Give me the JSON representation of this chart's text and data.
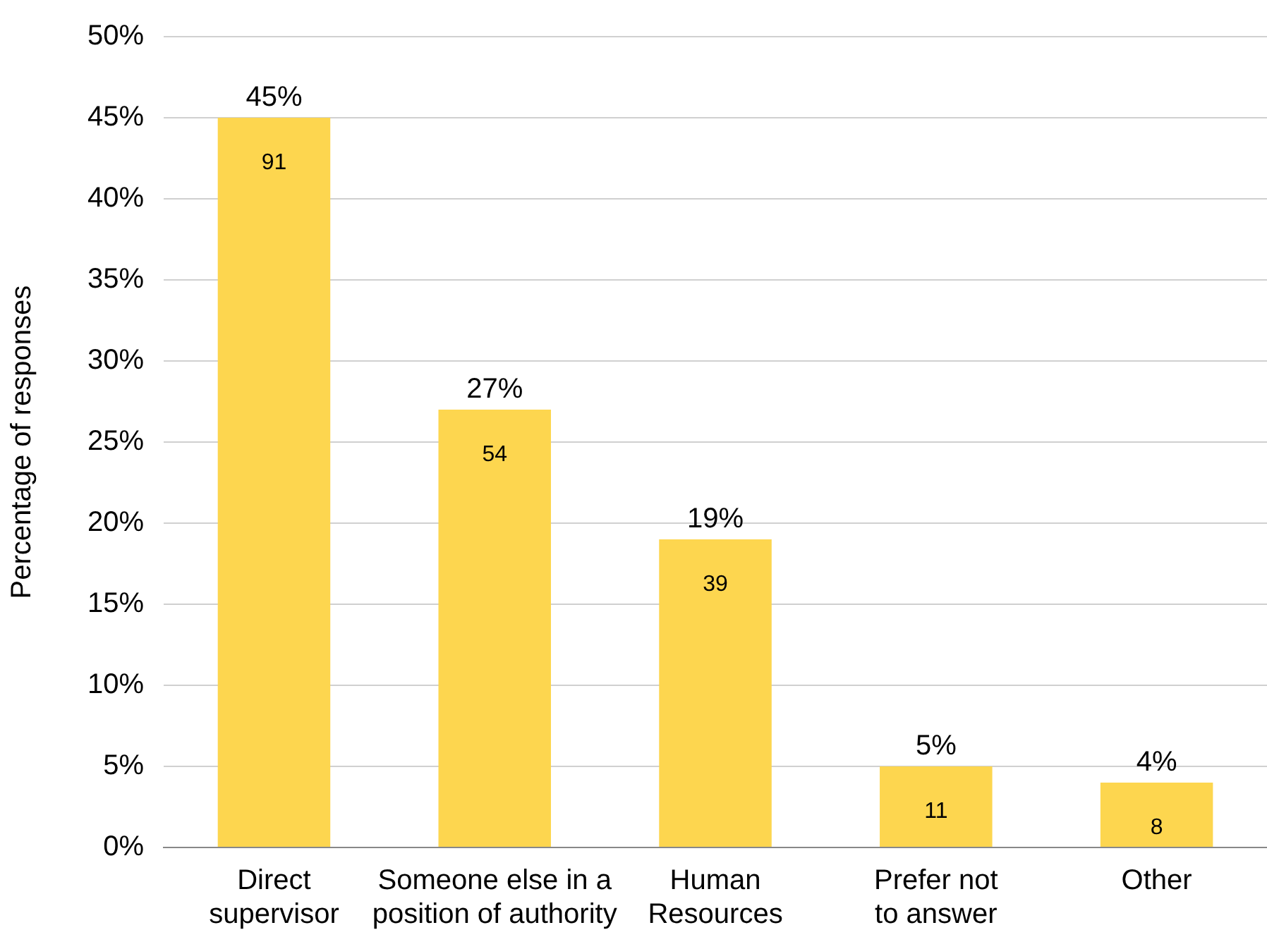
{
  "chart_data": {
    "type": "bar",
    "ylabel": "Percentage of responses",
    "categories": [
      "Direct supervisor",
      "Someone else in a position of authority",
      "Human Resources",
      "Prefer not to answer",
      "Other"
    ],
    "values": [
      45,
      27,
      19,
      5,
      4
    ],
    "color": "#fdd64f",
    "ylim": [
      0,
      50
    ],
    "yticks": [
      {
        "value": 0,
        "label": "0%"
      },
      {
        "value": 5,
        "label": "5%"
      },
      {
        "value": 10,
        "label": "10%"
      },
      {
        "value": 15,
        "label": "15%"
      },
      {
        "value": 20,
        "label": "20%"
      },
      {
        "value": 25,
        "label": "25%"
      },
      {
        "value": 30,
        "label": "30%"
      },
      {
        "value": 35,
        "label": "35%"
      },
      {
        "value": 40,
        "label": "40%"
      },
      {
        "value": 45,
        "label": "45%"
      },
      {
        "value": 50,
        "label": "50%"
      }
    ],
    "value_labels": [
      "45%",
      "27%",
      "19%",
      "5%",
      "4%"
    ],
    "grid": "y",
    "legend": false,
    "annotations": [
      {
        "text": "91",
        "x": "Direct supervisor",
        "y": 45
      },
      {
        "text": "54",
        "x": "Someone else in a position of authority",
        "y": 27
      },
      {
        "text": "39",
        "x": "Human Resources",
        "y": 19
      },
      {
        "text": "11",
        "x": "Prefer not to answer",
        "y": 5
      },
      {
        "text": "8",
        "x": "Other",
        "y": 4
      }
    ]
  }
}
